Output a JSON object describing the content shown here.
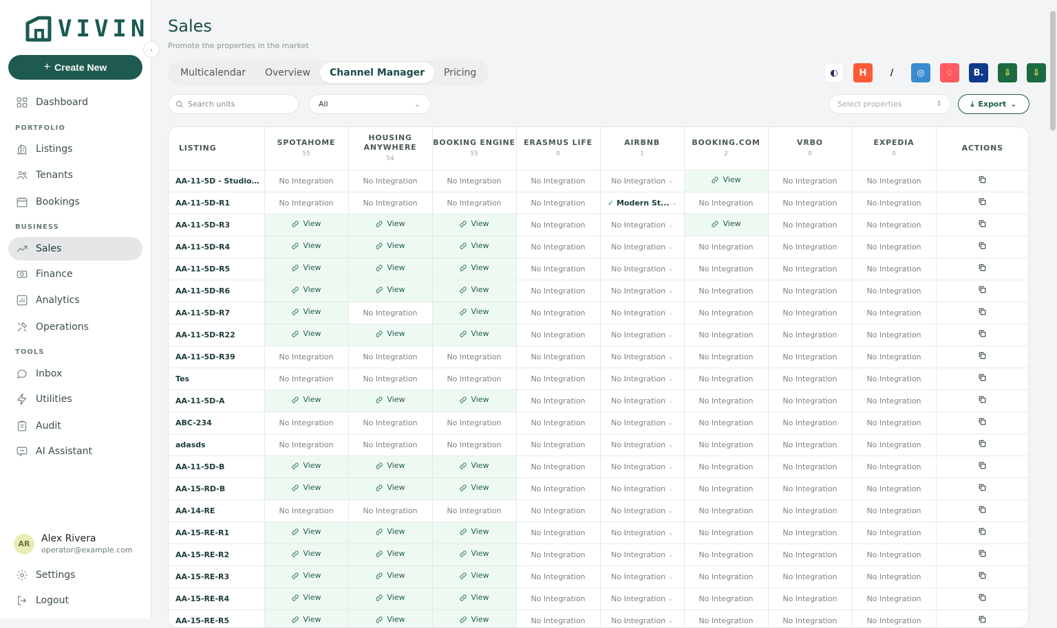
{
  "brand": {
    "name": "VIVIN"
  },
  "sidebar": {
    "create_label": "Create New",
    "sections": {
      "portfolio": "PORTFOLIO",
      "business": "BUSINESS",
      "tools": "TOOLS"
    },
    "items": [
      {
        "label": "Dashboard",
        "icon": "grid-icon"
      },
      {
        "label": "Listings",
        "icon": "building-icon"
      },
      {
        "label": "Tenants",
        "icon": "users-icon"
      },
      {
        "label": "Bookings",
        "icon": "calendar-icon"
      },
      {
        "label": "Sales",
        "icon": "trend-icon"
      },
      {
        "label": "Finance",
        "icon": "money-icon"
      },
      {
        "label": "Analytics",
        "icon": "chart-icon"
      },
      {
        "label": "Operations",
        "icon": "tools-icon"
      },
      {
        "label": "Inbox",
        "icon": "chat-icon"
      },
      {
        "label": "Utilities",
        "icon": "bolt-icon"
      },
      {
        "label": "Audit",
        "icon": "clipboard-icon"
      },
      {
        "label": "AI Assistant",
        "icon": "assistant-icon"
      }
    ],
    "user": {
      "initials": "AR",
      "name": "Alex Rivera",
      "email": "operator@example.com"
    },
    "settings_label": "Settings",
    "logout_label": "Logout"
  },
  "page": {
    "title": "Sales",
    "subtitle": "Promote the properties in the market",
    "tabs": [
      "Multicalendar",
      "Overview",
      "Channel Manager",
      "Pricing"
    ],
    "active_tab": "Channel Manager"
  },
  "toolbar": {
    "search_placeholder": "Search units",
    "filter_value": "All",
    "properties_placeholder": "Select properties",
    "export_label": "Export"
  },
  "table": {
    "columns": [
      {
        "label": "LISTING",
        "count": ""
      },
      {
        "label": "SPOTAHOME",
        "count": "55"
      },
      {
        "label": "HOUSING ANYWHERE",
        "count": "54"
      },
      {
        "label": "BOOKING ENGINE",
        "count": "55"
      },
      {
        "label": "ERASMUS LIFE",
        "count": "0"
      },
      {
        "label": "AIRBNB",
        "count": "1"
      },
      {
        "label": "BOOKING.COM",
        "count": "2"
      },
      {
        "label": "VRBO",
        "count": "0"
      },
      {
        "label": "EXPEDIA",
        "count": "0"
      },
      {
        "label": "ACTIONS",
        "count": ""
      }
    ],
    "no_integration": "No Integration",
    "view_label": "View",
    "airbnb_selected": "Modern St...",
    "rows": [
      {
        "name": "AA-11-5D - Studio ...",
        "s": 0,
        "h": 0,
        "b": 0,
        "a": 0,
        "bc": 1
      },
      {
        "name": "AA-11-5D-R1",
        "s": 0,
        "h": 0,
        "b": 0,
        "a": 1,
        "bc": 0
      },
      {
        "name": "AA-11-5D-R3",
        "s": 1,
        "h": 1,
        "b": 1,
        "a": 0,
        "bc": 1
      },
      {
        "name": "AA-11-5D-R4",
        "s": 1,
        "h": 1,
        "b": 1,
        "a": 0,
        "bc": 0
      },
      {
        "name": "AA-11-5D-R5",
        "s": 1,
        "h": 1,
        "b": 1,
        "a": 0,
        "bc": 0
      },
      {
        "name": "AA-11-5D-R6",
        "s": 1,
        "h": 1,
        "b": 1,
        "a": 0,
        "bc": 0
      },
      {
        "name": "AA-11-5D-R7",
        "s": 1,
        "h": 0,
        "b": 1,
        "a": 0,
        "bc": 0
      },
      {
        "name": "AA-11-5D-R22",
        "s": 1,
        "h": 1,
        "b": 1,
        "a": 0,
        "bc": 0
      },
      {
        "name": "AA-11-5D-R39",
        "s": 0,
        "h": 0,
        "b": 0,
        "a": 0,
        "bc": 0
      },
      {
        "name": "Tes",
        "s": 0,
        "h": 0,
        "b": 0,
        "a": 0,
        "bc": 0
      },
      {
        "name": "AA-11-5D-A",
        "s": 1,
        "h": 1,
        "b": 1,
        "a": 0,
        "bc": 0
      },
      {
        "name": "ABC-234",
        "s": 0,
        "h": 0,
        "b": 0,
        "a": 0,
        "bc": 0
      },
      {
        "name": "adasds",
        "s": 0,
        "h": 0,
        "b": 0,
        "a": 0,
        "bc": 0
      },
      {
        "name": "AA-11-5D-B",
        "s": 1,
        "h": 1,
        "b": 1,
        "a": 0,
        "bc": 0
      },
      {
        "name": "AA-15-RD-B",
        "s": 1,
        "h": 1,
        "b": 1,
        "a": 0,
        "bc": 0
      },
      {
        "name": "AA-14-RE",
        "s": 0,
        "h": 0,
        "b": 0,
        "a": 0,
        "bc": 0
      },
      {
        "name": "AA-15-RE-R1",
        "s": 1,
        "h": 1,
        "b": 1,
        "a": 0,
        "bc": 0
      },
      {
        "name": "AA-15-RE-R2",
        "s": 1,
        "h": 1,
        "b": 1,
        "a": 0,
        "bc": 0
      },
      {
        "name": "AA-15-RE-R3",
        "s": 1,
        "h": 1,
        "b": 1,
        "a": 0,
        "bc": 0
      },
      {
        "name": "AA-15-RE-R4",
        "s": 1,
        "h": 1,
        "b": 1,
        "a": 0,
        "bc": 0
      },
      {
        "name": "AA-15-RE-R5",
        "s": 1,
        "h": 1,
        "b": 1,
        "a": 0,
        "bc": 0
      }
    ]
  },
  "channel_logos": [
    {
      "name": "spotahome-logo",
      "bg": "#ffffff",
      "fg": "#2a2a6a",
      "glyph": "◐"
    },
    {
      "name": "housing-anywhere-logo",
      "bg": "#ff5a36",
      "fg": "#ffffff",
      "glyph": "H"
    },
    {
      "name": "erasmus-life-logo",
      "bg": "transparent",
      "fg": "#222222",
      "glyph": "/"
    },
    {
      "name": "housing-logo",
      "bg": "#3a8ad0",
      "fg": "#ffffff",
      "glyph": "◎"
    },
    {
      "name": "airbnb-logo",
      "bg": "#ff5a5f",
      "fg": "#ffffff",
      "glyph": "♢"
    },
    {
      "name": "booking-logo",
      "bg": "#0d3a8a",
      "fg": "#ffffff",
      "glyph": "B."
    },
    {
      "name": "download-logo-1",
      "bg": "#1e6a40",
      "fg": "#e8f050",
      "glyph": "⇩"
    },
    {
      "name": "download-logo-2",
      "bg": "#1e6a40",
      "fg": "#e8f050",
      "glyph": "⇩"
    }
  ]
}
